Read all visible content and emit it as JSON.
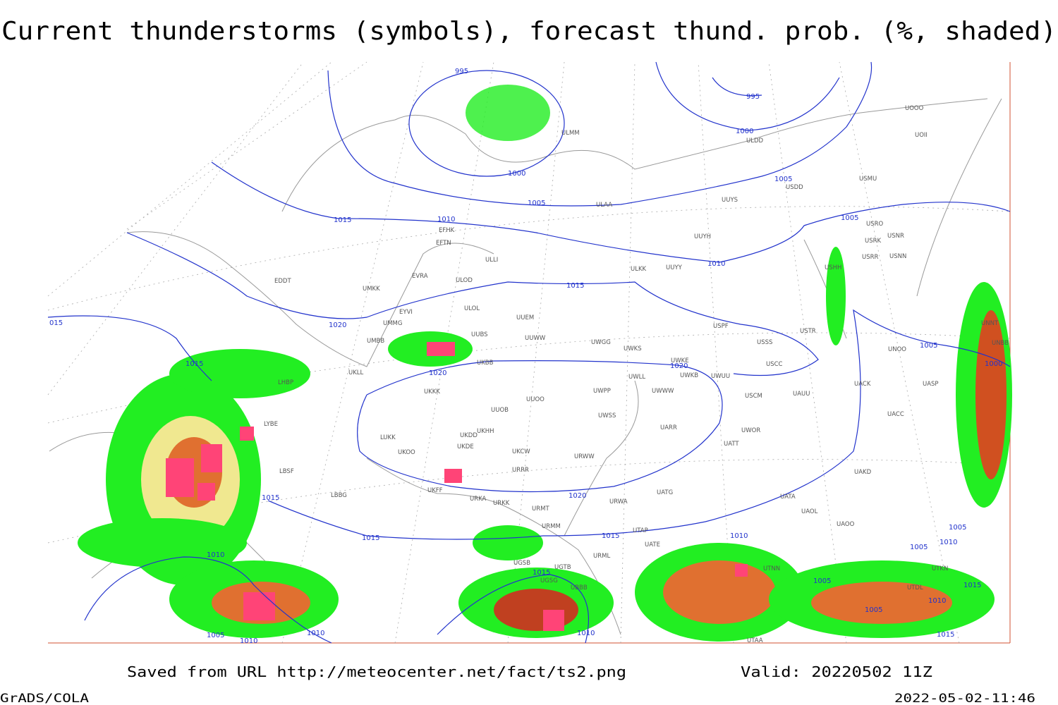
{
  "title": "Current thunderstorms (symbols), forecast thund. prob. (%, shaded)",
  "footer": {
    "source": "Saved from URL http://meteocenter.net/fact/ts2.png",
    "valid": "Valid: 20220502 11Z",
    "software": "GrADS/COLA",
    "timestamp": "2022-05-02-11:46"
  },
  "isobar_labels": [
    "995",
    "995",
    "1000",
    "1000",
    "1005",
    "1005",
    "1005",
    "1005",
    "1000",
    "1010",
    "1015",
    "1010",
    "1015",
    "1020",
    "015",
    "1015",
    "1020",
    "1020",
    "1015",
    "1020",
    "1015",
    "1015",
    "1010",
    "1015",
    "1010",
    "1005",
    "1005",
    "1005",
    "1010",
    "1015",
    "1010",
    "1005",
    "1015",
    "1005",
    "1010",
    "1010",
    "1010"
  ],
  "stations": [
    "UOOO",
    "UOII",
    "ULDD",
    "ULMM",
    "USMU",
    "USDD",
    "ULAA",
    "UUYS",
    "USRO",
    "USRK",
    "USNR",
    "USRR",
    "USNN",
    "UUYH",
    "ULKK",
    "UUYY",
    "USHH",
    "EFHK",
    "EFTN",
    "ULLI",
    "EVRA",
    "ULOD",
    "UMKK",
    "EDDT",
    "ULOL",
    "EYVI",
    "UMMG",
    "UUEM",
    "UUWW",
    "UUBS",
    "UMBB",
    "UWGG",
    "UWKS",
    "USPF",
    "USSS",
    "USTR",
    "UNOO",
    "UNBB",
    "UNNT",
    "UWKE",
    "UWKB",
    "UWUU",
    "USCC",
    "UWLL",
    "UWWW",
    "UKBB",
    "UKLL",
    "UKKK",
    "USCM",
    "UAUU",
    "UACK",
    "UASP",
    "UWPP",
    "UUOO",
    "UUOB",
    "UWSS",
    "UATT",
    "UACC",
    "UWOR",
    "UARR",
    "UKDD",
    "UKHH",
    "LUKK",
    "UKOO",
    "UKDE",
    "UKCW",
    "URWW",
    "UAKD",
    "URRR",
    "LBSF",
    "UKFF",
    "URKA",
    "URKK",
    "UATG",
    "UATA",
    "URWA",
    "UAOL",
    "UAOO",
    "URMT",
    "URMM",
    "UTAP",
    "UATE",
    "LBBG",
    "LYBE",
    "LHBP",
    "URML",
    "UGSB",
    "UGTB",
    "UTNN",
    "UTDL",
    "UTKN",
    "UGSG",
    "UBBB",
    "UTAA"
  ]
}
